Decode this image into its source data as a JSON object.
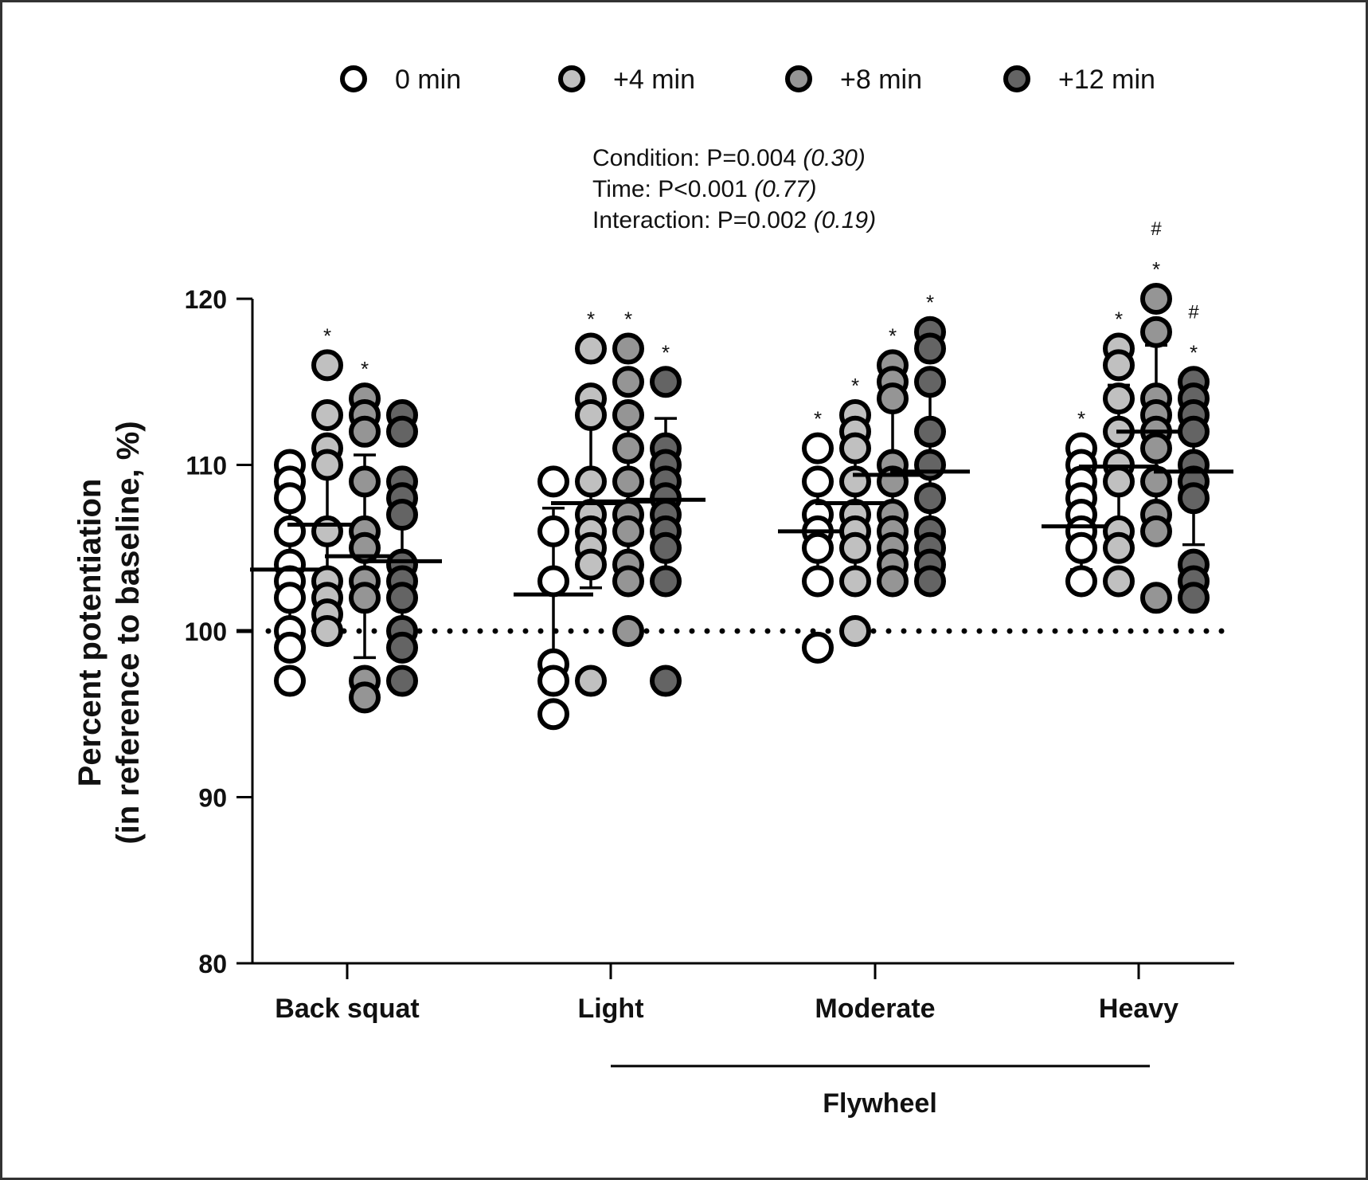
{
  "chart_data": {
    "type": "scatter",
    "subtype": "dot-plot with mean and SD error bars",
    "title": "",
    "ylabel_line1": "Percent potentiation",
    "ylabel_line2": "(in reference to baseline, %)",
    "xlabel": "",
    "ylim": [
      80,
      120
    ],
    "yticks": [
      80,
      90,
      100,
      110,
      120
    ],
    "reference_line": 100,
    "grid": false,
    "legend_position": "top",
    "categories": [
      "Back squat",
      "Light",
      "Moderate",
      "Heavy"
    ],
    "group_bracket": {
      "label": "Flywheel",
      "spans": [
        "Light",
        "Heavy"
      ]
    },
    "stats": [
      {
        "label": "Condition: P=0.004 ",
        "effect": "(0.30)"
      },
      {
        "label": "Time: P<0.001 ",
        "effect": "(0.77)"
      },
      {
        "label": "Interaction: P=0.002 ",
        "effect": "(0.19)"
      }
    ],
    "series": [
      {
        "name": "0 min",
        "color": "#ffffff"
      },
      {
        "name": "+4 min",
        "color": "#c0c0c0"
      },
      {
        "name": "+8 min",
        "color": "#959595"
      },
      {
        "name": "+12 min",
        "color": "#646464"
      }
    ],
    "groups": [
      {
        "category": "Back squat",
        "points": [
          {
            "series": "0 min",
            "values": [
              110,
              109,
              108,
              106,
              104,
              103,
              102,
              100,
              99,
              97
            ],
            "mean": 103.7,
            "sd": 3.7,
            "marks": []
          },
          {
            "series": "+4 min",
            "values": [
              116,
              113,
              111,
              110,
              106,
              103,
              102,
              101,
              100
            ],
            "mean": 106.4,
            "sd": 4.8,
            "marks": [
              "*"
            ]
          },
          {
            "series": "+8 min",
            "values": [
              114,
              113,
              112,
              109,
              106,
              105,
              103,
              102,
              97,
              96
            ],
            "mean": 104.5,
            "sd": 6.1,
            "marks": [
              "*"
            ]
          },
          {
            "series": "+12 min",
            "values": [
              113,
              112,
              109,
              108,
              107,
              104,
              103,
              102,
              100,
              99,
              97
            ],
            "mean": 104.2,
            "sd": 4.5,
            "marks": []
          }
        ]
      },
      {
        "category": "Light",
        "points": [
          {
            "series": "0 min",
            "values": [
              109,
              106,
              103,
              98,
              97,
              95
            ],
            "mean": 102.2,
            "sd": 5.2,
            "marks": []
          },
          {
            "series": "+4 min",
            "values": [
              117,
              114,
              113,
              109,
              107,
              106,
              105,
              104,
              97
            ],
            "mean": 107.7,
            "sd": 5.1,
            "marks": [
              "*"
            ]
          },
          {
            "series": "+8 min",
            "values": [
              117,
              115,
              113,
              111,
              109,
              107,
              106,
              104,
              103,
              100
            ],
            "mean": 107.8,
            "sd": 5.2,
            "marks": [
              "*"
            ]
          },
          {
            "series": "+12 min",
            "values": [
              115,
              111,
              110,
              109,
              108,
              107,
              106,
              105,
              103,
              97
            ],
            "mean": 107.9,
            "sd": 4.9,
            "marks": [
              "*"
            ]
          }
        ]
      },
      {
        "category": "Moderate",
        "points": [
          {
            "series": "0 min",
            "values": [
              111,
              109,
              107,
              106,
              105,
              103,
              99
            ],
            "mean": 106.0,
            "sd": 2.7,
            "marks": [
              "*"
            ]
          },
          {
            "series": "+4 min",
            "values": [
              113,
              112,
              111,
              109,
              107,
              106,
              105,
              103,
              100
            ],
            "mean": 107.7,
            "sd": 4.1,
            "marks": [
              "*"
            ]
          },
          {
            "series": "+8 min",
            "values": [
              116,
              115,
              114,
              110,
              109,
              107,
              106,
              105,
              104,
              103
            ],
            "mean": 109.4,
            "sd": 4.9,
            "marks": [
              "*"
            ]
          },
          {
            "series": "+12 min",
            "values": [
              118,
              117,
              115,
              112,
              110,
              108,
              106,
              105,
              104,
              103
            ],
            "mean": 109.6,
            "sd": 5.5,
            "marks": [
              "*"
            ]
          }
        ]
      },
      {
        "category": "Heavy",
        "points": [
          {
            "series": "0 min",
            "values": [
              111,
              110,
              109,
              108,
              107,
              106,
              105,
              103
            ],
            "mean": 106.3,
            "sd": 2.6,
            "marks": [
              "*"
            ]
          },
          {
            "series": "+4 min",
            "values": [
              117,
              116,
              114,
              112,
              110,
              109,
              106,
              105,
              103
            ],
            "mean": 109.9,
            "sd": 4.9,
            "marks": [
              "*"
            ]
          },
          {
            "series": "+8 min",
            "values": [
              120,
              118,
              114,
              113,
              112,
              111,
              109,
              107,
              106,
              102
            ],
            "mean": 112.0,
            "sd": 5.2,
            "marks": [
              "*",
              "#"
            ]
          },
          {
            "series": "+12 min",
            "values": [
              115,
              114,
              113,
              112,
              110,
              109,
              108,
              104,
              103,
              102
            ],
            "mean": 109.6,
            "sd": 4.4,
            "marks": [
              "*",
              "#"
            ]
          }
        ]
      }
    ]
  }
}
